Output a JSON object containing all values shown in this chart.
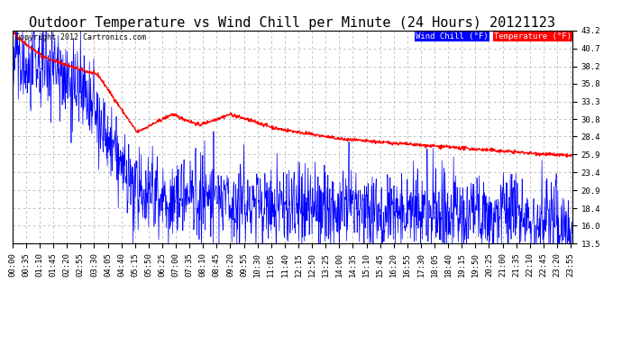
{
  "title": "Outdoor Temperature vs Wind Chill per Minute (24 Hours) 20121123",
  "copyright": "Copyright 2012 Cartronics.com",
  "legend_wind_chill": "Wind Chill (°F)",
  "legend_temp": "Temperature (°F)",
  "yticks": [
    13.5,
    16.0,
    18.4,
    20.9,
    23.4,
    25.9,
    28.4,
    30.8,
    33.3,
    35.8,
    38.2,
    40.7,
    43.2
  ],
  "ymin": 13.5,
  "ymax": 43.2,
  "wind_chill_color": "#0000FF",
  "temp_color": "#FF0000",
  "legend_wind_bg": "#0000FF",
  "legend_temp_bg": "#FF0000",
  "background_color": "#FFFFFF",
  "plot_bg": "#FFFFFF",
  "grid_color": "#AAAAAA",
  "title_fontsize": 11,
  "tick_fontsize": 6.5,
  "num_minutes": 1440,
  "figwidth": 6.9,
  "figheight": 3.75,
  "dpi": 100
}
